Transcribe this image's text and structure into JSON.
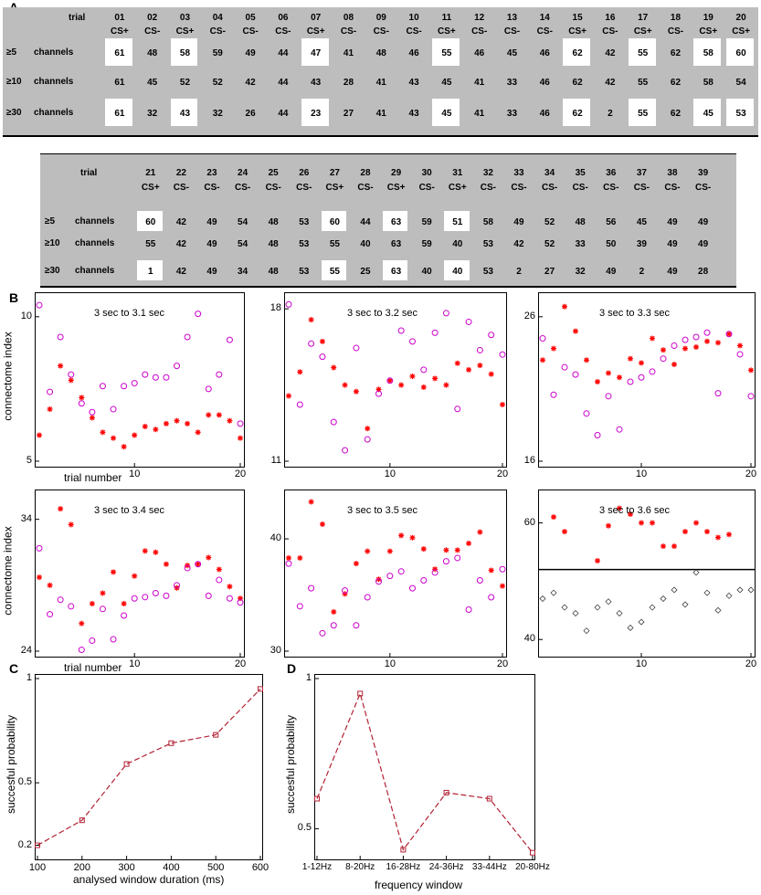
{
  "panel_labels": {
    "a": "A",
    "b": "B",
    "c": "C",
    "d": "D"
  },
  "table1": {
    "header_trial": "trial",
    "trials": [
      "01",
      "02",
      "03",
      "04",
      "05",
      "06",
      "07",
      "08",
      "09",
      "10",
      "11",
      "12",
      "13",
      "14",
      "15",
      "16",
      "17",
      "18",
      "19",
      "20"
    ],
    "cs": [
      "CS+",
      "CS-",
      "CS+",
      "CS-",
      "CS-",
      "CS-",
      "CS+",
      "CS-",
      "CS-",
      "CS-",
      "CS+",
      "CS-",
      "CS-",
      "CS-",
      "CS+",
      "CS-",
      "CS+",
      "CS-",
      "CS+",
      "CS+"
    ],
    "rows": [
      {
        "prefix": "≥5",
        "label": "channels",
        "values": [
          "61",
          "48",
          "58",
          "59",
          "49",
          "44",
          "47",
          "41",
          "48",
          "46",
          "55",
          "46",
          "45",
          "46",
          "62",
          "42",
          "55",
          "62",
          "58",
          "60"
        ]
      },
      {
        "prefix": "≥10",
        "label": "channels",
        "values": [
          "61",
          "45",
          "52",
          "52",
          "42",
          "44",
          "43",
          "28",
          "41",
          "43",
          "45",
          "41",
          "33",
          "46",
          "62",
          "42",
          "55",
          "62",
          "58",
          "54"
        ]
      },
      {
        "prefix": "≥30",
        "label": "channels",
        "values": [
          "61",
          "32",
          "43",
          "32",
          "26",
          "44",
          "23",
          "27",
          "41",
          "43",
          "45",
          "41",
          "33",
          "46",
          "62",
          "2",
          "55",
          "62",
          "45",
          "53"
        ]
      }
    ]
  },
  "table2": {
    "header_trial": "trial",
    "trials": [
      "21",
      "22",
      "23",
      "24",
      "25",
      "26",
      "27",
      "28",
      "29",
      "30",
      "31",
      "32",
      "33",
      "34",
      "35",
      "36",
      "37",
      "38",
      "39"
    ],
    "cs": [
      "CS+",
      "CS-",
      "CS-",
      "CS-",
      "CS-",
      "CS-",
      "CS+",
      "CS-",
      "CS+",
      "CS-",
      "CS+",
      "CS-",
      "CS-",
      "CS-",
      "CS-",
      "CS-",
      "CS-",
      "CS-",
      "CS-"
    ],
    "rows": [
      {
        "prefix": "≥5",
        "label": "channels",
        "values": [
          "60",
          "42",
          "49",
          "54",
          "48",
          "53",
          "60",
          "44",
          "63",
          "59",
          "51",
          "58",
          "49",
          "52",
          "48",
          "56",
          "45",
          "49",
          "49"
        ]
      },
      {
        "prefix": "≥10",
        "label": "channels",
        "values": [
          "55",
          "42",
          "49",
          "54",
          "48",
          "53",
          "55",
          "40",
          "63",
          "59",
          "40",
          "53",
          "42",
          "52",
          "33",
          "50",
          "39",
          "49",
          "49"
        ]
      },
      {
        "prefix": "≥30",
        "label": "channels",
        "values": [
          "1",
          "42",
          "49",
          "34",
          "48",
          "53",
          "55",
          "25",
          "63",
          "40",
          "40",
          "53",
          "2",
          "27",
          "32",
          "49",
          "2",
          "49",
          "28"
        ]
      }
    ]
  },
  "panel_b_common": {
    "ylabel": "connectome index",
    "xlabel": "trial number",
    "xticks": [
      "10",
      "20"
    ]
  },
  "chart_data": [
    {
      "type": "scatter",
      "title": "3 sec to 3.1 sec",
      "xlim": [
        1,
        20
      ],
      "ylim": [
        5,
        10.5
      ],
      "ytick_labels": [
        "5",
        "10"
      ],
      "yticks": [
        5,
        10
      ],
      "series": [
        {
          "name": "CS+",
          "marker": "star",
          "color": "#ff0000",
          "x": [
            1,
            2,
            3,
            4,
            5,
            6,
            7,
            8,
            9,
            10,
            11,
            12,
            13,
            14,
            15,
            16,
            17,
            18,
            19,
            20
          ],
          "y": [
            5.9,
            6.8,
            8.3,
            7.8,
            7.2,
            6.5,
            6.0,
            5.8,
            5.5,
            5.9,
            6.2,
            6.1,
            6.3,
            6.4,
            6.3,
            6.0,
            6.6,
            6.6,
            6.4,
            5.8
          ]
        },
        {
          "name": "CS-",
          "marker": "circle",
          "color": "#cc00cc",
          "x": [
            1,
            2,
            3,
            4,
            5,
            6,
            7,
            8,
            9,
            10,
            11,
            12,
            13,
            14,
            15,
            16,
            17,
            18,
            19,
            20
          ],
          "y": [
            10.4,
            7.4,
            9.3,
            8.0,
            7.0,
            6.7,
            7.6,
            6.8,
            7.6,
            7.7,
            8.0,
            7.9,
            7.9,
            8.3,
            9.3,
            10.1,
            7.5,
            8.0,
            9.2,
            6.3
          ]
        }
      ]
    },
    {
      "type": "scatter",
      "title": "3 sec to 3.2 sec",
      "xlim": [
        1,
        20
      ],
      "ylim": [
        11,
        18.3
      ],
      "ytick_labels": [
        "11",
        "18"
      ],
      "yticks": [
        11,
        18
      ],
      "series": [
        {
          "name": "CS+",
          "marker": "star",
          "color": "#ff0000",
          "x": [
            1,
            2,
            3,
            4,
            5,
            6,
            7,
            8,
            9,
            10,
            11,
            12,
            13,
            14,
            15,
            16,
            17,
            18,
            19,
            20
          ],
          "y": [
            14.0,
            15.1,
            17.5,
            16.5,
            15.3,
            14.5,
            14.2,
            12.5,
            14.3,
            14.7,
            14.5,
            14.9,
            14.4,
            14.8,
            14.5,
            15.5,
            15.2,
            15.4,
            15.0,
            13.6
          ]
        },
        {
          "name": "CS-",
          "marker": "circle",
          "color": "#cc00cc",
          "x": [
            1,
            2,
            3,
            4,
            5,
            6,
            7,
            8,
            9,
            10,
            11,
            12,
            13,
            14,
            15,
            16,
            17,
            18,
            19,
            20
          ],
          "y": [
            18.2,
            13.6,
            16.4,
            15.8,
            12.8,
            11.5,
            16.2,
            12.0,
            14.1,
            14.7,
            17.0,
            16.5,
            15.2,
            16.9,
            17.8,
            13.4,
            17.4,
            16.1,
            16.8,
            15.9
          ]
        }
      ]
    },
    {
      "type": "scatter",
      "title": "3 sec to 3.3 sec",
      "xlim": [
        1,
        20
      ],
      "ylim": [
        16,
        27
      ],
      "ytick_labels": [
        "16",
        "26"
      ],
      "yticks": [
        16,
        26
      ],
      "series": [
        {
          "name": "CS+",
          "marker": "star",
          "color": "#ff0000",
          "x": [
            1,
            2,
            3,
            4,
            5,
            6,
            7,
            8,
            9,
            10,
            11,
            12,
            13,
            14,
            15,
            16,
            17,
            18,
            19,
            20
          ],
          "y": [
            23.0,
            23.8,
            26.7,
            25.0,
            23.0,
            21.5,
            22.1,
            21.8,
            23.1,
            22.8,
            24.5,
            23.7,
            22.7,
            23.8,
            23.9,
            24.3,
            24.2,
            24.8,
            24.0,
            22.3
          ]
        },
        {
          "name": "CS-",
          "marker": "circle",
          "color": "#cc00cc",
          "x": [
            1,
            2,
            3,
            4,
            5,
            6,
            7,
            8,
            9,
            10,
            11,
            12,
            13,
            14,
            15,
            16,
            17,
            18,
            19,
            20
          ],
          "y": [
            24.5,
            20.6,
            22.5,
            22.0,
            19.3,
            17.8,
            20.5,
            18.2,
            21.5,
            21.8,
            22.2,
            23.1,
            24.0,
            24.4,
            24.6,
            24.9,
            20.7,
            24.8,
            23.4,
            20.5
          ]
        }
      ]
    },
    {
      "type": "scatter",
      "title": "3 sec to 3.4 sec",
      "xlim": [
        1,
        20
      ],
      "ylim": [
        24,
        35.5
      ],
      "ytick_labels": [
        "24",
        "34"
      ],
      "yticks": [
        24,
        34
      ],
      "series": [
        {
          "name": "CS+",
          "marker": "star",
          "color": "#ff0000",
          "x": [
            1,
            2,
            3,
            4,
            5,
            6,
            7,
            8,
            9,
            10,
            11,
            12,
            13,
            14,
            15,
            16,
            17,
            18,
            19,
            20
          ],
          "y": [
            29.6,
            29.0,
            34.8,
            33.6,
            26.1,
            27.6,
            28.4,
            30.0,
            27.6,
            29.7,
            31.6,
            31.5,
            30.6,
            28.8,
            30.5,
            30.6,
            31.1,
            30.2,
            28.9,
            28.0
          ]
        },
        {
          "name": "CS-",
          "marker": "circle",
          "color": "#cc00cc",
          "x": [
            1,
            2,
            3,
            4,
            5,
            6,
            7,
            8,
            9,
            10,
            11,
            12,
            13,
            14,
            15,
            16,
            17,
            18,
            19,
            20
          ],
          "y": [
            31.8,
            26.8,
            27.9,
            27.4,
            24.1,
            24.8,
            27.2,
            24.9,
            26.7,
            28.0,
            28.1,
            28.4,
            28.2,
            29.0,
            30.3,
            30.6,
            28.2,
            29.4,
            28.0,
            27.7
          ]
        }
      ]
    },
    {
      "type": "scatter",
      "title": "3 sec to 3.5 sec",
      "xlim": [
        1,
        20
      ],
      "ylim": [
        30,
        43.5
      ],
      "ytick_labels": [
        "30",
        "40"
      ],
      "yticks": [
        30,
        40
      ],
      "series": [
        {
          "name": "CS+",
          "marker": "star",
          "color": "#ff0000",
          "x": [
            1,
            2,
            3,
            4,
            5,
            6,
            7,
            8,
            9,
            10,
            11,
            12,
            13,
            14,
            15,
            16,
            17,
            18,
            19,
            20
          ],
          "y": [
            38.3,
            38.3,
            43.3,
            41.3,
            33.5,
            35.1,
            37.8,
            38.9,
            36.4,
            38.9,
            40.3,
            40.1,
            39.1,
            37.3,
            39.0,
            39.0,
            39.6,
            40.6,
            37.2,
            35.8
          ]
        },
        {
          "name": "CS-",
          "marker": "circle",
          "color": "#cc00cc",
          "x": [
            1,
            2,
            3,
            4,
            5,
            6,
            7,
            8,
            9,
            10,
            11,
            12,
            13,
            14,
            15,
            16,
            17,
            18,
            19,
            20
          ],
          "y": [
            37.8,
            34.0,
            35.6,
            31.6,
            32.3,
            35.4,
            32.3,
            34.8,
            36.2,
            36.7,
            37.1,
            35.6,
            36.3,
            37.0,
            38.0,
            38.3,
            33.7,
            36.3,
            34.8,
            37.3
          ]
        }
      ]
    },
    {
      "type": "scatter",
      "title": "3 sec to 3.6 sec",
      "xlim": [
        1,
        20
      ],
      "ylim": [
        38,
        64
      ],
      "ytick_labels": [
        "40",
        "60"
      ],
      "yticks": [
        40,
        60
      ],
      "reference_line": 52,
      "series": [
        {
          "name": "CS+",
          "marker": "star",
          "color": "#ff0000",
          "x": [
            2,
            3,
            6,
            7,
            8,
            9,
            10,
            11,
            12,
            13,
            14,
            15,
            16,
            17,
            18
          ],
          "y": [
            61.0,
            58.5,
            53.5,
            59.5,
            62.5,
            61.5,
            60.0,
            60.0,
            56.0,
            56.0,
            58.5,
            60.0,
            58.5,
            57.5,
            58.0
          ]
        },
        {
          "name": "CS-",
          "marker": "diamond",
          "color": "#444444",
          "x": [
            1,
            2,
            3,
            4,
            5,
            6,
            7,
            8,
            9,
            10,
            11,
            12,
            13,
            14,
            15,
            16,
            17,
            18,
            19,
            20
          ],
          "y": [
            47.0,
            48.0,
            45.5,
            44.5,
            41.5,
            45.5,
            46.5,
            44.5,
            42.0,
            43.0,
            45.5,
            47.0,
            48.5,
            46.0,
            51.5,
            48.0,
            45.0,
            47.5,
            48.5,
            48.5
          ]
        }
      ]
    },
    {
      "type": "line",
      "title": "",
      "xlabel": "analysed window duration (ms)",
      "ylabel": "succesful probability",
      "x": [
        100,
        200,
        300,
        400,
        500,
        600
      ],
      "values": [
        0.2,
        0.32,
        0.59,
        0.69,
        0.73,
        0.95
      ],
      "xlim": [
        100,
        600
      ],
      "ylim": [
        0.15,
        1.0
      ],
      "ytick_labels": [
        "0.2",
        "0.5",
        "1"
      ],
      "yticks": [
        0.2,
        0.5,
        1.0
      ],
      "xtick_labels": [
        "100",
        "200",
        "300",
        "400",
        "500",
        "600"
      ]
    },
    {
      "type": "line",
      "title": "",
      "xlabel": "frequency window",
      "ylabel": "succesful probability",
      "categories": [
        "1-12Hz",
        "8-20Hz",
        "16-28Hz",
        "24-36Hz",
        "33-44Hz",
        "20-80Hz"
      ],
      "values": [
        0.6,
        0.95,
        0.43,
        0.62,
        0.6,
        0.42
      ],
      "ylim": [
        0.41,
        1.0
      ],
      "ytick_labels": [
        "0.5",
        "1"
      ],
      "yticks": [
        0.5,
        1.0
      ]
    }
  ]
}
